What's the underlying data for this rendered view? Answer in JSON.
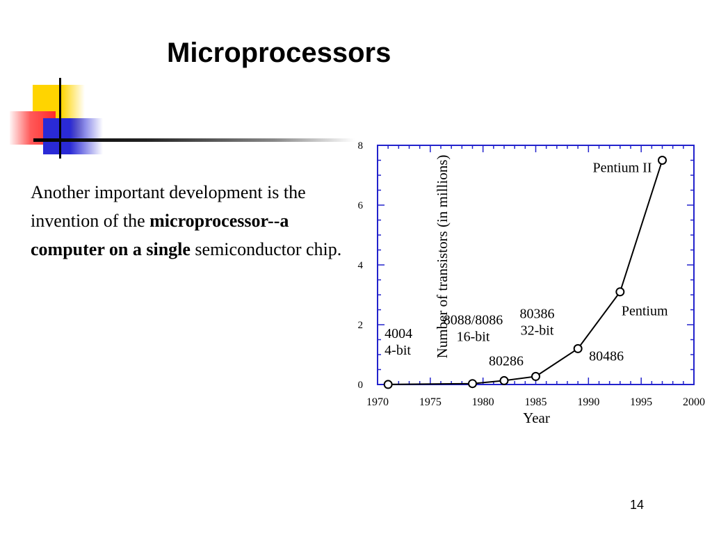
{
  "slide": {
    "title": "Microprocessors",
    "body_plain_1": "Another important development is the invention of the ",
    "body_bold": "microprocessor--a computer on a single",
    "body_plain_2": " semiconductor chip.",
    "page_number": "14"
  },
  "colors": {
    "frame": "#2222cc",
    "line": "#000000",
    "deco_yellow": "#ffd400",
    "deco_red": "#ff3333",
    "deco_blue": "#2a2ad6"
  },
  "chart_data": {
    "type": "line",
    "xlabel": "Year",
    "ylabel": "Number of transistors (in millions)",
    "xlim": [
      1970,
      2000
    ],
    "ylim": [
      0,
      8
    ],
    "xticks": [
      1970,
      1975,
      1980,
      1985,
      1990,
      1995,
      2000
    ],
    "yticks": [
      0,
      2,
      4,
      6,
      8
    ],
    "x": [
      1971,
      1979,
      1982,
      1985,
      1989,
      1993,
      1997
    ],
    "y": [
      0.002,
      0.03,
      0.13,
      0.27,
      1.2,
      3.1,
      7.5
    ],
    "annotations": [
      {
        "lines": [
          "4004",
          "4-bit"
        ],
        "x": 1971,
        "y": 0.002
      },
      {
        "lines": [
          "8088/8086",
          "16-bit"
        ],
        "x": 1979,
        "y": 0.03
      },
      {
        "lines": [
          "80286"
        ],
        "x": 1982,
        "y": 0.13
      },
      {
        "lines": [
          "80386",
          "32-bit"
        ],
        "x": 1985,
        "y": 0.27
      },
      {
        "lines": [
          "80486"
        ],
        "x": 1989,
        "y": 1.2
      },
      {
        "lines": [
          "Pentium"
        ],
        "x": 1993,
        "y": 3.1
      },
      {
        "lines": [
          "Pentium II"
        ],
        "x": 1997,
        "y": 7.5
      }
    ]
  }
}
